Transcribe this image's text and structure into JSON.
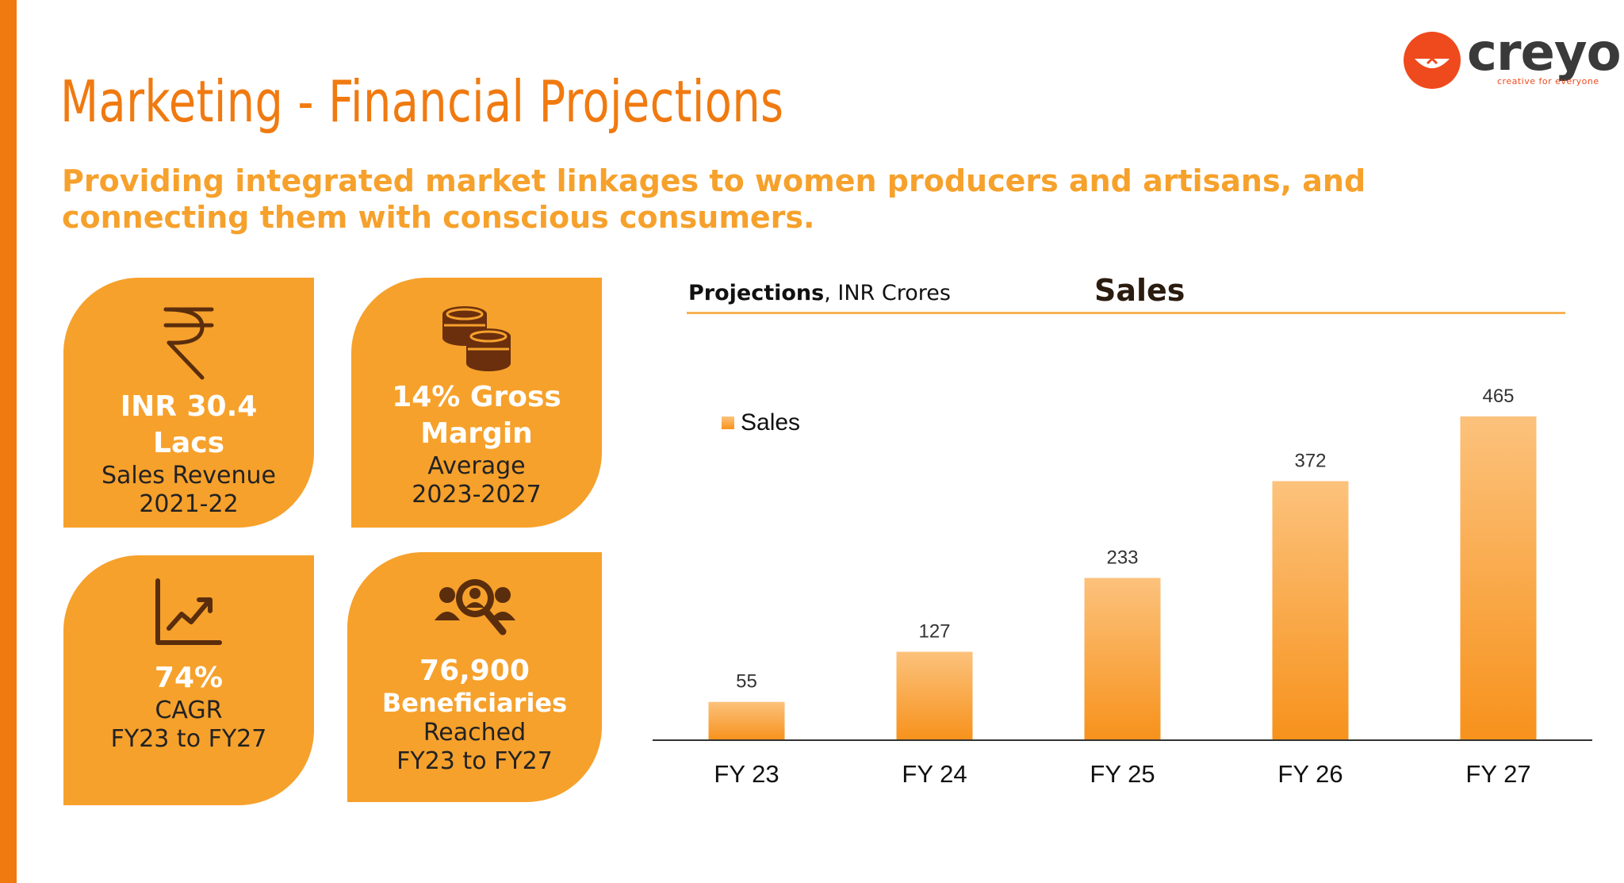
{
  "header": {
    "title": "Marketing - Financial Projections",
    "subtitle": "Providing integrated market linkages to women producers and artisans, and connecting them with conscious consumers."
  },
  "logo": {
    "name": "creyo",
    "tagline": "creative for everyone"
  },
  "cards": [
    {
      "icon": "rupee-icon",
      "big": "INR 30.4 Lacs",
      "small1": "Sales Revenue",
      "small2": "2021-22"
    },
    {
      "icon": "coins-icon",
      "big": "14% Gross Margin",
      "small1": "Average",
      "small2": "2023-2027"
    },
    {
      "icon": "growth-chart-icon",
      "big": "74%",
      "small1": "CAGR",
      "small2": "FY23 to FY27"
    },
    {
      "icon": "people-search-icon",
      "big": "76,900",
      "big2": "Beneficiaries",
      "small1": "Reached",
      "small2": "FY23 to FY27"
    }
  ],
  "chart_header": {
    "bold": "Projections",
    "rest": ", INR Crores"
  },
  "colors": {
    "accent": "#f07a10",
    "card": "#f6a12c",
    "bar_top": "#fcc27c",
    "bar_bottom": "#f7921c"
  },
  "chart_data": {
    "type": "bar",
    "title": "Sales",
    "categories": [
      "FY 23",
      "FY 24",
      "FY 25",
      "FY 26",
      "FY 27"
    ],
    "series": [
      {
        "name": "Sales",
        "values": [
          55,
          127,
          233,
          372,
          465
        ]
      }
    ],
    "ylim": [
      0,
      540
    ],
    "grid": false,
    "legend": "top-left"
  }
}
